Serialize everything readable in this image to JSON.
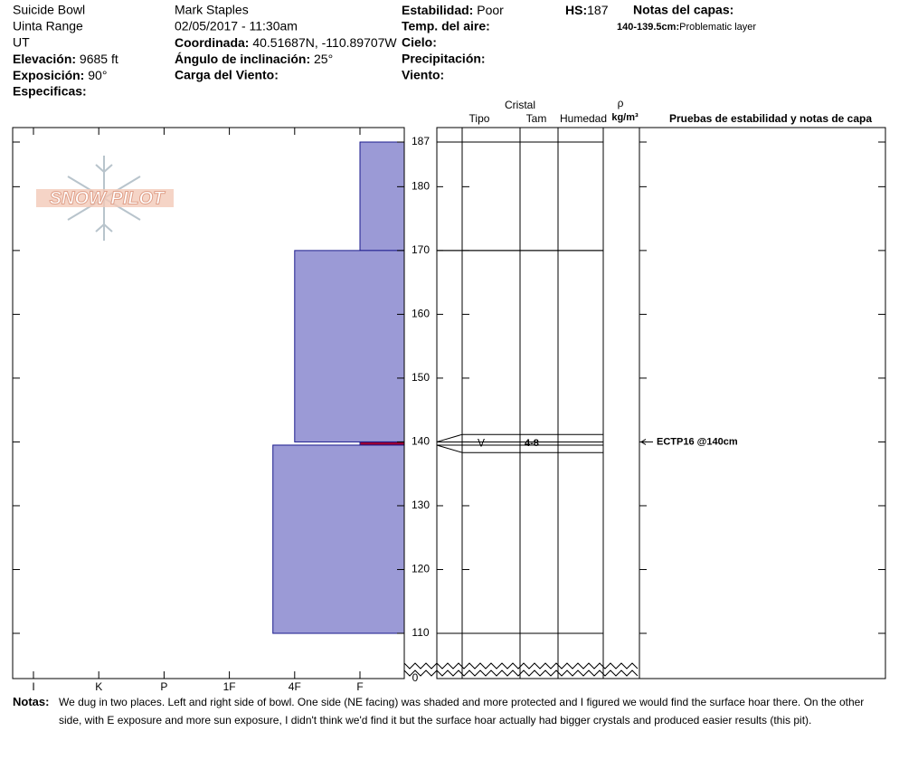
{
  "header": {
    "site": "Suicide Bowl",
    "range": "Uinta Range",
    "state": "UT",
    "elevation": {
      "label": "Elevación:",
      "value": "9685 ft"
    },
    "aspect": {
      "label": "Exposición:",
      "value": "90°"
    },
    "specifics": {
      "label": "Especificas:"
    },
    "observer": "Mark Staples",
    "datetime": "02/05/2017 - 11:30am",
    "coordinates": {
      "label": "Coordinada:",
      "value": "40.51687N, -110.89707W"
    },
    "slope": {
      "label": "Ángulo de inclinación:",
      "value": "25°"
    },
    "wind_loading": {
      "label": "Carga del Viento:"
    },
    "stability": {
      "label": "Estabilidad:",
      "value": "Poor"
    },
    "air_temp": {
      "label": "Temp. del aire:"
    },
    "sky": {
      "label": "Cielo:"
    },
    "precipitation": {
      "label": "Precipitación:"
    },
    "wind": {
      "label": "Viento:"
    },
    "hs": {
      "label": "HS:",
      "value": "187"
    },
    "layer_notes": {
      "label": "Notas del capas:",
      "items": [
        {
          "range": "140-139.5cm:",
          "note": "Problematic layer"
        }
      ]
    }
  },
  "logo": "SNOW PILOT",
  "chart_data": {
    "type": "snow-profile",
    "hardness_categories": [
      "I",
      "K",
      "P",
      "1F",
      "4F",
      "F"
    ],
    "ylim": [
      110,
      187
    ],
    "yticks": [
      187,
      180,
      170,
      160,
      150,
      140,
      130,
      120,
      110
    ],
    "break_tick": 0,
    "layers": [
      {
        "top": 187,
        "bottom": 170,
        "hardness": "F",
        "color": "#9b9ad6"
      },
      {
        "top": 170,
        "bottom": 140,
        "hardness": "4F",
        "color": "#9b9ad6"
      },
      {
        "top": 140,
        "bottom": 139.5,
        "hardness": "F",
        "color": "#990033",
        "grain_type": "V",
        "grain_size": "4-8"
      },
      {
        "top": 139.5,
        "bottom": 110,
        "hardness": "4F-",
        "color": "#9b9ad6"
      }
    ],
    "columns": {
      "crystal": "Cristal",
      "type": "Tipo",
      "size": "Tam",
      "moisture": "Humedad",
      "density_symbol": "ρ",
      "density_unit": "kg/m³",
      "tests": "Pruebas de estabilidad y notas de capa"
    },
    "tests": [
      {
        "depth": 140,
        "label": "ECTP16 @140cm"
      }
    ]
  },
  "notes": {
    "label": "Notas:",
    "text": "We dug in two places. Left and right side of bowl. One side (NE facing) was shaded and more protected and I figured we would find the surface hoar there. On the other side, with E exposure and more sun exposure, I didn't think we'd find it but the surface hoar actually had bigger crystals and produced easier results (this pit)."
  }
}
